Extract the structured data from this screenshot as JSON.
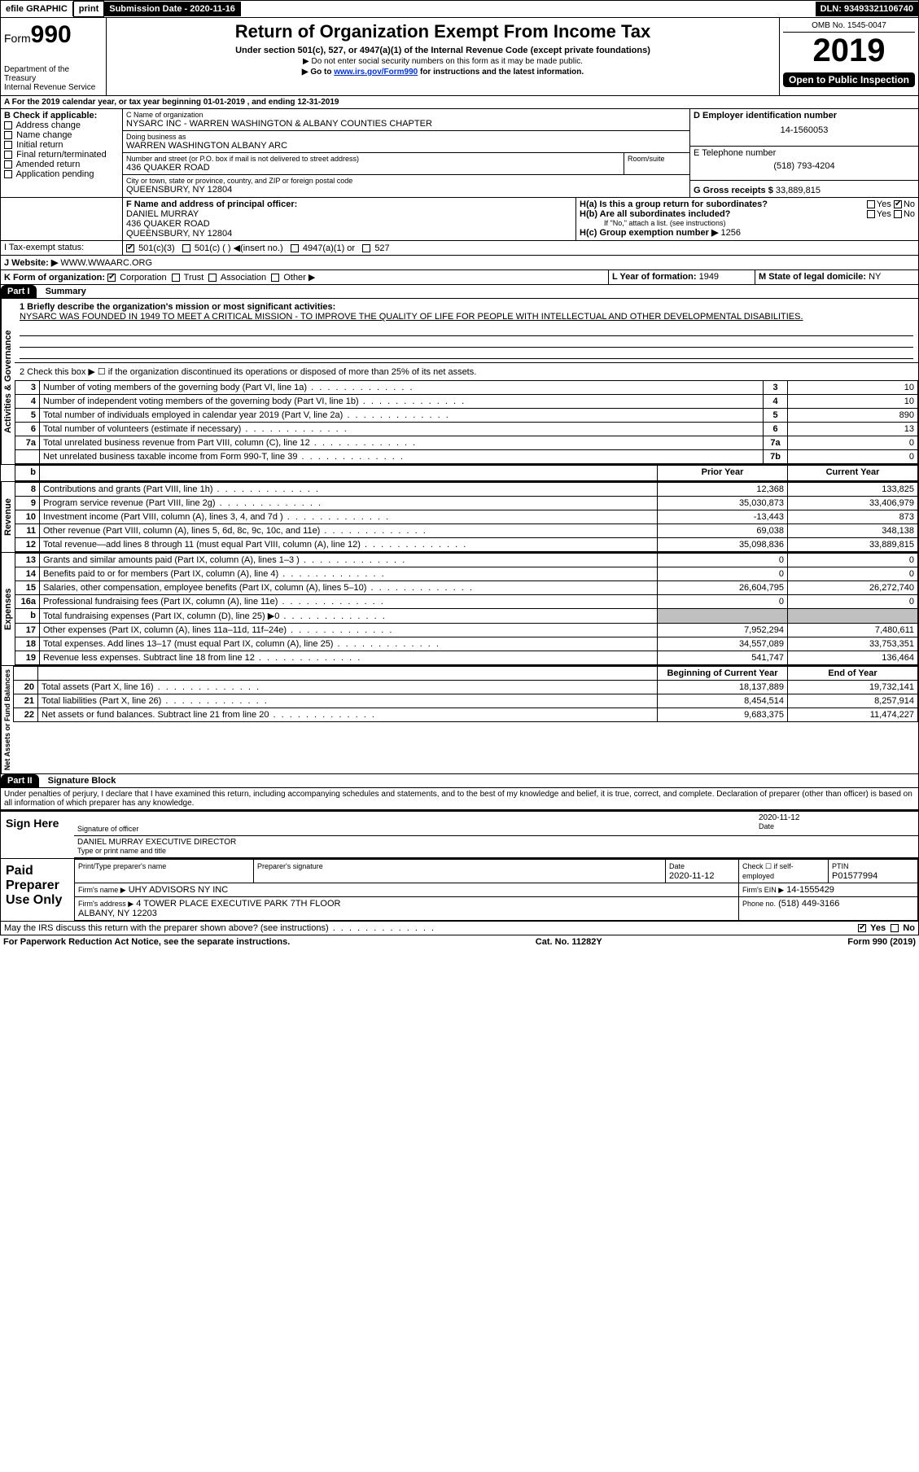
{
  "topbar": {
    "efile": "efile GRAPHIC",
    "print": "print",
    "submission_label": "Submission Date - 2020-11-16",
    "dln": "DLN: 93493321106740"
  },
  "header": {
    "form_prefix": "Form",
    "form_number": "990",
    "title": "Return of Organization Exempt From Income Tax",
    "subtitle1": "Under section 501(c), 527, or 4947(a)(1) of the Internal Revenue Code (except private foundations)",
    "subtitle2": "▶ Do not enter social security numbers on this form as it may be made public.",
    "subtitle3_prefix": "▶ Go to ",
    "subtitle3_link": "www.irs.gov/Form990",
    "subtitle3_suffix": " for instructions and the latest information.",
    "dept": "Department of the Treasury\nInternal Revenue Service",
    "omb": "OMB No. 1545-0047",
    "year": "2019",
    "open_public": "Open to Public Inspection"
  },
  "section_a": {
    "text": "A For the 2019 calendar year, or tax year beginning 01-01-2019    , and ending 12-31-2019"
  },
  "section_b": {
    "label": "B Check if applicable:",
    "items": [
      "Address change",
      "Name change",
      "Initial return",
      "Final return/terminated",
      "Amended return",
      "Application pending"
    ]
  },
  "section_c": {
    "name_label": "C Name of organization",
    "name": "NYSARC INC - WARREN WASHINGTON & ALBANY COUNTIES CHAPTER",
    "dba_label": "Doing business as",
    "dba": "WARREN WASHINGTON ALBANY ARC",
    "street_label": "Number and street (or P.O. box if mail is not delivered to street address)",
    "street": "436 QUAKER ROAD",
    "room_label": "Room/suite",
    "city_label": "City or town, state or province, country, and ZIP or foreign postal code",
    "city": "QUEENSBURY, NY  12804"
  },
  "section_d": {
    "label": "D Employer identification number",
    "value": "14-1560053"
  },
  "section_e": {
    "label": "E Telephone number",
    "value": "(518) 793-4204"
  },
  "section_g": {
    "label": "G Gross receipts $",
    "value": "33,889,815"
  },
  "section_f": {
    "label": "F  Name and address of principal officer:",
    "name": "DANIEL MURRAY",
    "street": "436 QUAKER ROAD",
    "city": "QUEENSBURY, NY  12804"
  },
  "section_h": {
    "a": "H(a)  Is this a group return for subordinates?",
    "a_yes": "Yes",
    "a_no": "No",
    "b": "H(b)  Are all subordinates included?",
    "b_yes": "Yes",
    "b_no": "No",
    "b_note": "If \"No,\" attach a list. (see instructions)",
    "c_label": "H(c)  Group exemption number ▶",
    "c_value": "1256"
  },
  "section_i": {
    "label": "I   Tax-exempt status:",
    "opt1": "501(c)(3)",
    "opt2": "501(c) (   ) ◀(insert no.)",
    "opt3": "4947(a)(1) or",
    "opt4": "527"
  },
  "section_j": {
    "label": "J   Website: ▶",
    "value": "WWW.WWAARC.ORG"
  },
  "section_k": {
    "label": "K Form of organization:",
    "opts": [
      "Corporation",
      "Trust",
      "Association",
      "Other ▶"
    ]
  },
  "section_l": {
    "label": "L Year of formation:",
    "value": "1949"
  },
  "section_m": {
    "label": "M State of legal domicile:",
    "value": "NY"
  },
  "part1": {
    "header": "Part I",
    "title": "Summary",
    "line1_label": "1  Briefly describe the organization's mission or most significant activities:",
    "line1_text": "NYSARC WAS FOUNDED IN 1949 TO MEET A CRITICAL MISSION - TO IMPROVE THE QUALITY OF LIFE FOR PEOPLE WITH INTELLECTUAL AND OTHER DEVELOPMENTAL DISABILITIES.",
    "line2": "2   Check this box ▶ ☐  if the organization discontinued its operations or disposed of more than 25% of its net assets.",
    "governance_rows": [
      {
        "n": "3",
        "text": "Number of voting members of the governing body (Part VI, line 1a)",
        "idx": "3",
        "val": "10"
      },
      {
        "n": "4",
        "text": "Number of independent voting members of the governing body (Part VI, line 1b)",
        "idx": "4",
        "val": "10"
      },
      {
        "n": "5",
        "text": "Total number of individuals employed in calendar year 2019 (Part V, line 2a)",
        "idx": "5",
        "val": "890"
      },
      {
        "n": "6",
        "text": "Total number of volunteers (estimate if necessary)",
        "idx": "6",
        "val": "13"
      },
      {
        "n": "7a",
        "text": "Total unrelated business revenue from Part VIII, column (C), line 12",
        "idx": "7a",
        "val": "0"
      },
      {
        "n": "",
        "text": "Net unrelated business taxable income from Form 990-T, line 39",
        "idx": "7b",
        "val": "0"
      }
    ],
    "col_headers": {
      "b": "b",
      "prior": "Prior Year",
      "current": "Current Year"
    },
    "revenue_label": "Revenue",
    "revenue_rows": [
      {
        "n": "8",
        "text": "Contributions and grants (Part VIII, line 1h)",
        "prior": "12,368",
        "current": "133,825"
      },
      {
        "n": "9",
        "text": "Program service revenue (Part VIII, line 2g)",
        "prior": "35,030,873",
        "current": "33,406,979"
      },
      {
        "n": "10",
        "text": "Investment income (Part VIII, column (A), lines 3, 4, and 7d )",
        "prior": "-13,443",
        "current": "873"
      },
      {
        "n": "11",
        "text": "Other revenue (Part VIII, column (A), lines 5, 6d, 8c, 9c, 10c, and 11e)",
        "prior": "69,038",
        "current": "348,138"
      },
      {
        "n": "12",
        "text": "Total revenue—add lines 8 through 11 (must equal Part VIII, column (A), line 12)",
        "prior": "35,098,836",
        "current": "33,889,815"
      }
    ],
    "expenses_label": "Expenses",
    "expenses_rows": [
      {
        "n": "13",
        "text": "Grants and similar amounts paid (Part IX, column (A), lines 1–3 )",
        "prior": "0",
        "current": "0"
      },
      {
        "n": "14",
        "text": "Benefits paid to or for members (Part IX, column (A), line 4)",
        "prior": "0",
        "current": "0"
      },
      {
        "n": "15",
        "text": "Salaries, other compensation, employee benefits (Part IX, column (A), lines 5–10)",
        "prior": "26,604,795",
        "current": "26,272,740"
      },
      {
        "n": "16a",
        "text": "Professional fundraising fees (Part IX, column (A), line 11e)",
        "prior": "0",
        "current": "0"
      },
      {
        "n": "b",
        "text": "Total fundraising expenses (Part IX, column (D), line 25) ▶0",
        "prior": "",
        "current": "",
        "grey": true
      },
      {
        "n": "17",
        "text": "Other expenses (Part IX, column (A), lines 11a–11d, 11f–24e)",
        "prior": "7,952,294",
        "current": "7,480,611"
      },
      {
        "n": "18",
        "text": "Total expenses. Add lines 13–17 (must equal Part IX, column (A), line 25)",
        "prior": "34,557,089",
        "current": "33,753,351"
      },
      {
        "n": "19",
        "text": "Revenue less expenses. Subtract line 18 from line 12",
        "prior": "541,747",
        "current": "136,464"
      }
    ],
    "netassets_label": "Net Assets or Fund Balances",
    "netassets_headers": {
      "begin": "Beginning of Current Year",
      "end": "End of Year"
    },
    "netassets_rows": [
      {
        "n": "20",
        "text": "Total assets (Part X, line 16)",
        "prior": "18,137,889",
        "current": "19,732,141"
      },
      {
        "n": "21",
        "text": "Total liabilities (Part X, line 26)",
        "prior": "8,454,514",
        "current": "8,257,914"
      },
      {
        "n": "22",
        "text": "Net assets or fund balances. Subtract line 21 from line 20",
        "prior": "9,683,375",
        "current": "11,474,227"
      }
    ]
  },
  "part2": {
    "header": "Part II",
    "title": "Signature Block",
    "declaration": "Under penalties of perjury, I declare that I have examined this return, including accompanying schedules and statements, and to the best of my knowledge and belief, it is true, correct, and complete. Declaration of preparer (other than officer) is based on all information of which preparer has any knowledge.",
    "sign_here": "Sign Here",
    "sig_officer_label": "Signature of officer",
    "sig_date": "2020-11-12",
    "sig_date_label": "Date",
    "officer_name": "DANIEL MURRAY  EXECUTIVE DIRECTOR",
    "officer_name_label": "Type or print name and title",
    "paid_preparer": "Paid Preparer Use Only",
    "prep_name_label": "Print/Type preparer's name",
    "prep_sig_label": "Preparer's signature",
    "prep_date_label": "Date",
    "prep_date": "2020-11-12",
    "prep_check_label": "Check ☐ if self-employed",
    "ptin_label": "PTIN",
    "ptin": "P01577994",
    "firm_name_label": "Firm's name    ▶",
    "firm_name": "UHY ADVISORS NY INC",
    "firm_ein_label": "Firm's EIN ▶",
    "firm_ein": "14-1555429",
    "firm_addr_label": "Firm's address ▶",
    "firm_addr": "4 TOWER PLACE EXECUTIVE PARK 7TH FLOOR\nALBANY, NY  12203",
    "phone_label": "Phone no.",
    "phone": "(518) 449-3166",
    "may_irs": "May the IRS discuss this return with the preparer shown above? (see instructions)",
    "yes": "Yes",
    "no": "No"
  },
  "footer": {
    "left": "For Paperwork Reduction Act Notice, see the separate instructions.",
    "mid": "Cat. No. 11282Y",
    "right": "Form 990 (2019)"
  },
  "colors": {
    "black": "#000000",
    "white": "#ffffff",
    "link": "#0033cc",
    "grey": "#c0c0c0"
  }
}
